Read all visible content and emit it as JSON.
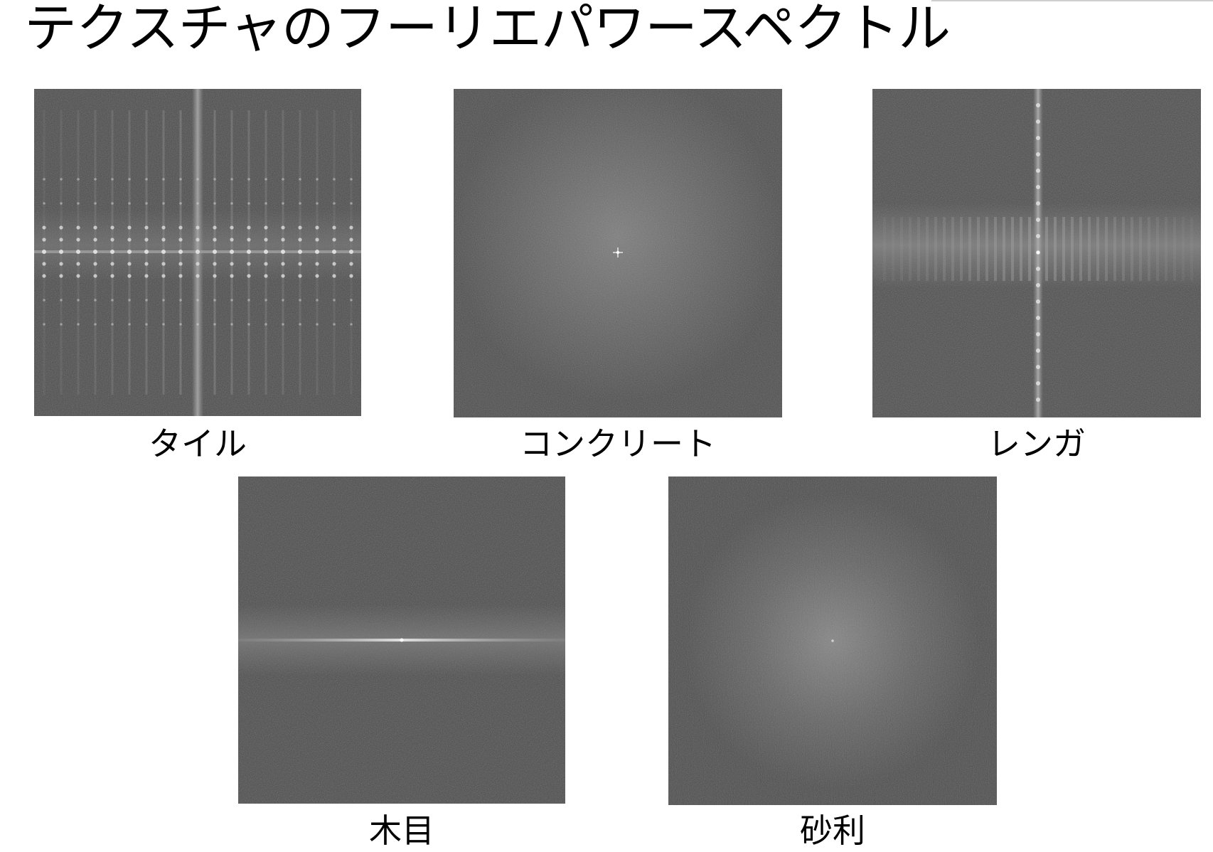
{
  "title": "テクスチャのフーリエパワースペクトル",
  "panels": [
    {
      "id": "tile",
      "label": "タイル",
      "pattern": "grid-lattice"
    },
    {
      "id": "concrete",
      "label": "コンクリート",
      "pattern": "diffuse-center-point"
    },
    {
      "id": "brick",
      "label": "レンガ",
      "pattern": "vertical-line-horizontal-band"
    },
    {
      "id": "wood",
      "label": "木目",
      "pattern": "horizontal-line"
    },
    {
      "id": "gravel",
      "label": "砂利",
      "pattern": "diffuse-blob"
    }
  ],
  "colors": {
    "spectrum_background": "#4a4a4a",
    "spectrum_highlight": "#bdbdbd",
    "text": "#000000",
    "page": "#ffffff"
  }
}
